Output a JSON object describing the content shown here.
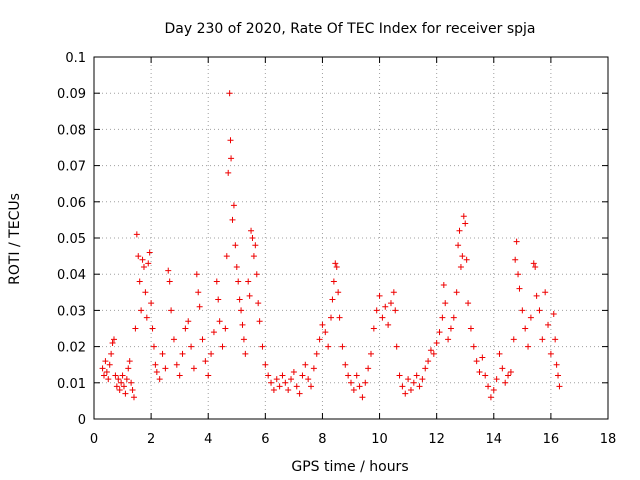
{
  "chart_data": {
    "type": "scatter",
    "title": "Day 230 of 2020, Rate Of TEC Index for receiver spja",
    "xlabel": "GPS time / hours",
    "ylabel": "ROTI / TECUs",
    "xlim": [
      0,
      18
    ],
    "ylim": [
      0,
      0.1
    ],
    "xticks": [
      "0",
      "2",
      "4",
      "6",
      "8",
      "10",
      "12",
      "14",
      "16",
      "18"
    ],
    "yticks": [
      "0",
      "0.01",
      "0.02",
      "0.03",
      "0.04",
      "0.05",
      "0.06",
      "0.07",
      "0.08",
      "0.09",
      "0.1"
    ],
    "grid": true,
    "marker": "+",
    "color": "#ee0000",
    "points": [
      [
        0.3,
        0.014
      ],
      [
        0.35,
        0.012
      ],
      [
        0.4,
        0.016
      ],
      [
        0.45,
        0.013
      ],
      [
        0.5,
        0.011
      ],
      [
        0.55,
        0.015
      ],
      [
        0.6,
        0.018
      ],
      [
        0.65,
        0.021
      ],
      [
        0.7,
        0.022
      ],
      [
        0.75,
        0.012
      ],
      [
        0.8,
        0.009
      ],
      [
        0.85,
        0.011
      ],
      [
        0.9,
        0.008
      ],
      [
        0.95,
        0.01
      ],
      [
        1.0,
        0.012
      ],
      [
        1.05,
        0.009
      ],
      [
        1.1,
        0.007
      ],
      [
        1.15,
        0.011
      ],
      [
        1.2,
        0.014
      ],
      [
        1.25,
        0.016
      ],
      [
        1.3,
        0.01
      ],
      [
        1.35,
        0.008
      ],
      [
        1.4,
        0.006
      ],
      [
        1.45,
        0.025
      ],
      [
        1.5,
        0.051
      ],
      [
        1.55,
        0.045
      ],
      [
        1.6,
        0.038
      ],
      [
        1.65,
        0.03
      ],
      [
        1.7,
        0.044
      ],
      [
        1.75,
        0.042
      ],
      [
        1.8,
        0.035
      ],
      [
        1.85,
        0.028
      ],
      [
        1.9,
        0.043
      ],
      [
        1.95,
        0.046
      ],
      [
        2.0,
        0.032
      ],
      [
        2.05,
        0.025
      ],
      [
        2.1,
        0.02
      ],
      [
        2.15,
        0.015
      ],
      [
        2.2,
        0.013
      ],
      [
        2.3,
        0.011
      ],
      [
        2.4,
        0.018
      ],
      [
        2.5,
        0.014
      ],
      [
        2.6,
        0.041
      ],
      [
        2.65,
        0.038
      ],
      [
        2.7,
        0.03
      ],
      [
        2.8,
        0.022
      ],
      [
        2.9,
        0.015
      ],
      [
        3.0,
        0.012
      ],
      [
        3.1,
        0.018
      ],
      [
        3.2,
        0.025
      ],
      [
        3.3,
        0.027
      ],
      [
        3.4,
        0.02
      ],
      [
        3.5,
        0.014
      ],
      [
        3.6,
        0.04
      ],
      [
        3.65,
        0.035
      ],
      [
        3.7,
        0.031
      ],
      [
        3.8,
        0.022
      ],
      [
        3.9,
        0.016
      ],
      [
        4.0,
        0.012
      ],
      [
        4.1,
        0.018
      ],
      [
        4.2,
        0.024
      ],
      [
        4.3,
        0.038
      ],
      [
        4.35,
        0.033
      ],
      [
        4.4,
        0.027
      ],
      [
        4.5,
        0.02
      ],
      [
        4.6,
        0.025
      ],
      [
        4.65,
        0.045
      ],
      [
        4.7,
        0.068
      ],
      [
        4.75,
        0.09
      ],
      [
        4.78,
        0.077
      ],
      [
        4.8,
        0.072
      ],
      [
        4.85,
        0.055
      ],
      [
        4.9,
        0.059
      ],
      [
        4.95,
        0.048
      ],
      [
        5.0,
        0.042
      ],
      [
        5.05,
        0.038
      ],
      [
        5.1,
        0.033
      ],
      [
        5.15,
        0.03
      ],
      [
        5.2,
        0.026
      ],
      [
        5.25,
        0.022
      ],
      [
        5.3,
        0.018
      ],
      [
        5.4,
        0.038
      ],
      [
        5.45,
        0.034
      ],
      [
        5.5,
        0.052
      ],
      [
        5.55,
        0.05
      ],
      [
        5.6,
        0.045
      ],
      [
        5.65,
        0.048
      ],
      [
        5.7,
        0.04
      ],
      [
        5.75,
        0.032
      ],
      [
        5.8,
        0.027
      ],
      [
        5.9,
        0.02
      ],
      [
        6.0,
        0.015
      ],
      [
        6.1,
        0.012
      ],
      [
        6.2,
        0.01
      ],
      [
        6.3,
        0.008
      ],
      [
        6.4,
        0.011
      ],
      [
        6.5,
        0.009
      ],
      [
        6.6,
        0.012
      ],
      [
        6.7,
        0.01
      ],
      [
        6.8,
        0.008
      ],
      [
        6.9,
        0.011
      ],
      [
        7.0,
        0.013
      ],
      [
        7.1,
        0.009
      ],
      [
        7.2,
        0.007
      ],
      [
        7.3,
        0.012
      ],
      [
        7.4,
        0.015
      ],
      [
        7.5,
        0.011
      ],
      [
        7.6,
        0.009
      ],
      [
        7.7,
        0.014
      ],
      [
        7.8,
        0.018
      ],
      [
        7.9,
        0.022
      ],
      [
        8.0,
        0.026
      ],
      [
        8.1,
        0.024
      ],
      [
        8.2,
        0.02
      ],
      [
        8.3,
        0.028
      ],
      [
        8.35,
        0.033
      ],
      [
        8.4,
        0.038
      ],
      [
        8.45,
        0.043
      ],
      [
        8.5,
        0.042
      ],
      [
        8.55,
        0.035
      ],
      [
        8.6,
        0.028
      ],
      [
        8.7,
        0.02
      ],
      [
        8.8,
        0.015
      ],
      [
        8.9,
        0.012
      ],
      [
        9.0,
        0.01
      ],
      [
        9.1,
        0.008
      ],
      [
        9.2,
        0.012
      ],
      [
        9.3,
        0.009
      ],
      [
        9.4,
        0.006
      ],
      [
        9.5,
        0.01
      ],
      [
        9.6,
        0.014
      ],
      [
        9.7,
        0.018
      ],
      [
        9.8,
        0.025
      ],
      [
        9.9,
        0.03
      ],
      [
        10.0,
        0.034
      ],
      [
        10.1,
        0.028
      ],
      [
        10.2,
        0.031
      ],
      [
        10.3,
        0.026
      ],
      [
        10.4,
        0.032
      ],
      [
        10.5,
        0.035
      ],
      [
        10.55,
        0.03
      ],
      [
        10.6,
        0.02
      ],
      [
        10.7,
        0.012
      ],
      [
        10.8,
        0.009
      ],
      [
        10.9,
        0.007
      ],
      [
        11.0,
        0.011
      ],
      [
        11.1,
        0.008
      ],
      [
        11.2,
        0.01
      ],
      [
        11.3,
        0.012
      ],
      [
        11.4,
        0.009
      ],
      [
        11.5,
        0.011
      ],
      [
        11.6,
        0.014
      ],
      [
        11.7,
        0.016
      ],
      [
        11.8,
        0.019
      ],
      [
        11.9,
        0.018
      ],
      [
        12.0,
        0.021
      ],
      [
        12.1,
        0.024
      ],
      [
        12.2,
        0.028
      ],
      [
        12.25,
        0.037
      ],
      [
        12.3,
        0.032
      ],
      [
        12.4,
        0.022
      ],
      [
        12.5,
        0.025
      ],
      [
        12.6,
        0.028
      ],
      [
        12.7,
        0.035
      ],
      [
        12.75,
        0.048
      ],
      [
        12.8,
        0.052
      ],
      [
        12.85,
        0.042
      ],
      [
        12.9,
        0.045
      ],
      [
        12.95,
        0.056
      ],
      [
        13.0,
        0.054
      ],
      [
        13.05,
        0.044
      ],
      [
        13.1,
        0.032
      ],
      [
        13.2,
        0.025
      ],
      [
        13.3,
        0.02
      ],
      [
        13.4,
        0.016
      ],
      [
        13.5,
        0.013
      ],
      [
        13.6,
        0.017
      ],
      [
        13.7,
        0.012
      ],
      [
        13.8,
        0.009
      ],
      [
        13.9,
        0.006
      ],
      [
        14.0,
        0.008
      ],
      [
        14.1,
        0.011
      ],
      [
        14.2,
        0.018
      ],
      [
        14.3,
        0.014
      ],
      [
        14.4,
        0.01
      ],
      [
        14.5,
        0.012
      ],
      [
        14.6,
        0.013
      ],
      [
        14.7,
        0.022
      ],
      [
        14.75,
        0.044
      ],
      [
        14.8,
        0.049
      ],
      [
        14.85,
        0.04
      ],
      [
        14.9,
        0.036
      ],
      [
        15.0,
        0.03
      ],
      [
        15.1,
        0.025
      ],
      [
        15.2,
        0.02
      ],
      [
        15.3,
        0.028
      ],
      [
        15.4,
        0.043
      ],
      [
        15.45,
        0.042
      ],
      [
        15.5,
        0.034
      ],
      [
        15.6,
        0.03
      ],
      [
        15.7,
        0.022
      ],
      [
        15.8,
        0.035
      ],
      [
        15.9,
        0.026
      ],
      [
        16.0,
        0.018
      ],
      [
        16.1,
        0.029
      ],
      [
        16.15,
        0.022
      ],
      [
        16.2,
        0.015
      ],
      [
        16.25,
        0.012
      ],
      [
        16.3,
        0.009
      ]
    ]
  }
}
